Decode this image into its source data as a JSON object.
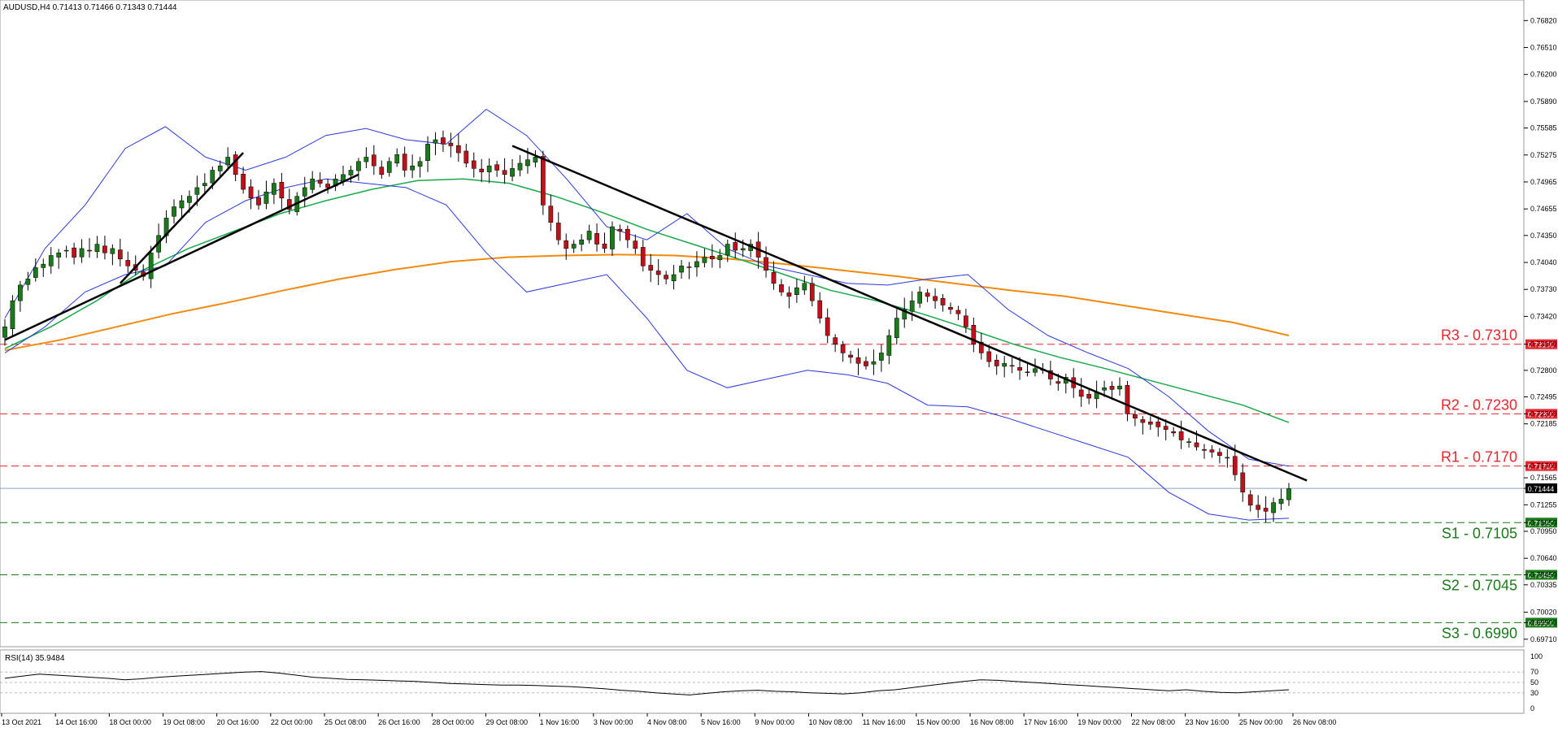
{
  "window": {
    "symbol_header": "AUDUSD,H4  0.71413 0.71466 0.71343 0.71444",
    "rsi_header": "RSI(14) 35.9484"
  },
  "colors": {
    "bull_candle": "#1a7a1a",
    "bear_candle": "#c0101a",
    "bollinger": "#2a3ad8",
    "ma_fast": "#1aa84a",
    "ma_slow": "#f08a10",
    "resistance": "#e8242c",
    "support": "#1a7a1a",
    "trendline": "#000000",
    "current_price_line": "#8aa0c8"
  },
  "chart_data": [
    {
      "type": "candlestick",
      "ylim": [
        0.6968,
        0.77
      ],
      "y_ticks": [
        "0.76820",
        "0.76510",
        "0.76200",
        "0.75890",
        "0.75585",
        "0.75275",
        "0.74965",
        "0.74655",
        "0.74350",
        "0.74040",
        "0.73730",
        "0.73420",
        "0.73100",
        "0.72800",
        "0.72495",
        "0.72300",
        "0.72185",
        "0.71700",
        "0.71565",
        "0.71444",
        "0.71255",
        "0.71050",
        "0.70950",
        "0.70640",
        "0.70450",
        "0.70335",
        "0.70020",
        "0.69900",
        "0.69710"
      ],
      "x_labels": [
        "13 Oct 2021",
        "14 Oct 16:00",
        "18 Oct 00:00",
        "19 Oct 08:00",
        "20 Oct 16:00",
        "22 Oct 00:00",
        "25 Oct 08:00",
        "26 Oct 16:00",
        "28 Oct 00:00",
        "29 Oct 08:00",
        "1 Nov 16:00",
        "3 Nov 00:00",
        "4 Nov 08:00",
        "5 Nov 16:00",
        "9 Nov 00:00",
        "10 Nov 08:00",
        "11 Nov 16:00",
        "15 Nov 00:00",
        "16 Nov 08:00",
        "17 Nov 16:00",
        "19 Nov 00:00",
        "22 Nov 08:00",
        "23 Nov 16:00",
        "25 Nov 00:00",
        "26 Nov 08:00"
      ],
      "current_price": 0.71444,
      "levels": [
        {
          "name": "R3",
          "label": "R3 - 0.7310",
          "tag": "0.73100",
          "value": 0.731,
          "kind": "resistance"
        },
        {
          "name": "R2",
          "label": "R2 - 0.7230",
          "tag": "0.72300",
          "value": 0.723,
          "kind": "resistance"
        },
        {
          "name": "R1",
          "label": "R1 - 0.7170",
          "tag": "0.71700",
          "value": 0.717,
          "kind": "resistance"
        },
        {
          "name": "S1",
          "label": "S1 - 0.7105",
          "tag": "0.71050",
          "value": 0.7105,
          "kind": "support"
        },
        {
          "name": "S2",
          "label": "S2 - 0.7045",
          "tag": "0.70450",
          "value": 0.7045,
          "kind": "support"
        },
        {
          "name": "S3",
          "label": "S3 - 0.6990",
          "tag": "0.69900",
          "value": 0.699,
          "kind": "support"
        }
      ],
      "closes": [
        0.733,
        0.736,
        0.7378,
        0.7385,
        0.7398,
        0.7402,
        0.7412,
        0.7415,
        0.7418,
        0.741,
        0.742,
        0.7418,
        0.7425,
        0.7415,
        0.742,
        0.7408,
        0.74,
        0.7395,
        0.7388,
        0.7415,
        0.7435,
        0.7455,
        0.7468,
        0.7475,
        0.748,
        0.749,
        0.7495,
        0.751,
        0.7515,
        0.7525,
        0.7505,
        0.7488,
        0.7478,
        0.747,
        0.7485,
        0.7495,
        0.7478,
        0.7465,
        0.748,
        0.749,
        0.75,
        0.7495,
        0.749,
        0.75,
        0.7505,
        0.751,
        0.752,
        0.7525,
        0.7515,
        0.7505,
        0.752,
        0.7528,
        0.751,
        0.7515,
        0.752,
        0.754,
        0.7545,
        0.754,
        0.7538,
        0.753,
        0.7518,
        0.7512,
        0.7508,
        0.7515,
        0.751,
        0.7505,
        0.7512,
        0.7518,
        0.7522,
        0.7525,
        0.747,
        0.745,
        0.743,
        0.742,
        0.7425,
        0.743,
        0.744,
        0.7425,
        0.742,
        0.7445,
        0.744,
        0.743,
        0.742,
        0.74,
        0.7395,
        0.739,
        0.7385,
        0.739,
        0.74,
        0.7398,
        0.7405,
        0.741,
        0.7408,
        0.7412,
        0.7425,
        0.7418,
        0.742,
        0.7425,
        0.741,
        0.7395,
        0.738,
        0.737,
        0.7365,
        0.7375,
        0.738,
        0.736,
        0.734,
        0.732,
        0.731,
        0.73,
        0.7295,
        0.7288,
        0.7285,
        0.729,
        0.73,
        0.732,
        0.734,
        0.735,
        0.736,
        0.737,
        0.7365,
        0.736,
        0.7355,
        0.735,
        0.7345,
        0.733,
        0.731,
        0.73,
        0.729,
        0.7285,
        0.7288,
        0.7285,
        0.728,
        0.7278,
        0.7282,
        0.728,
        0.727,
        0.7265,
        0.7272,
        0.726,
        0.725,
        0.7248,
        0.7255,
        0.726,
        0.7258,
        0.7262,
        0.723,
        0.7225,
        0.722,
        0.7218,
        0.7215,
        0.7212,
        0.7208,
        0.72,
        0.7198,
        0.7192,
        0.7188,
        0.7186,
        0.7182,
        0.718,
        0.716,
        0.714,
        0.7125,
        0.712,
        0.7118,
        0.7128,
        0.7132,
        0.7144
      ],
      "bb_upper": [
        0.734,
        0.742,
        0.747,
        0.7535,
        0.756,
        0.7525,
        0.751,
        0.7525,
        0.755,
        0.7558,
        0.7545,
        0.754,
        0.758,
        0.755,
        0.75,
        0.7445,
        0.743,
        0.746,
        0.742,
        0.74,
        0.739,
        0.738,
        0.7378,
        0.7385,
        0.739,
        0.735,
        0.732,
        0.73,
        0.7282,
        0.725,
        0.721,
        0.7178,
        0.717
      ],
      "bb_lower": [
        0.73,
        0.733,
        0.737,
        0.739,
        0.74,
        0.745,
        0.7475,
        0.749,
        0.75,
        0.7495,
        0.749,
        0.747,
        0.7415,
        0.737,
        0.738,
        0.739,
        0.734,
        0.728,
        0.726,
        0.727,
        0.728,
        0.7275,
        0.7265,
        0.724,
        0.7238,
        0.7225,
        0.721,
        0.7195,
        0.718,
        0.714,
        0.7115,
        0.7108,
        0.711
      ],
      "ma_fast": [
        0.7305,
        0.733,
        0.736,
        0.7395,
        0.742,
        0.744,
        0.746,
        0.7475,
        0.7488,
        0.7498,
        0.75,
        0.7495,
        0.748,
        0.7462,
        0.7442,
        0.7425,
        0.7408,
        0.739,
        0.7372,
        0.736,
        0.7345,
        0.7328,
        0.731,
        0.7295,
        0.7282,
        0.7268,
        0.7254,
        0.724,
        0.722
      ],
      "ma_slow": [
        0.7303,
        0.7315,
        0.733,
        0.7345,
        0.7358,
        0.7372,
        0.7385,
        0.7396,
        0.7405,
        0.741,
        0.7412,
        0.7413,
        0.7412,
        0.7408,
        0.7402,
        0.7395,
        0.7388,
        0.738,
        0.7372,
        0.7365,
        0.7355,
        0.7345,
        0.7335,
        0.732
      ],
      "trendlines": [
        {
          "from": [
            0,
            0.7315
          ],
          "to": [
            46,
            0.7505
          ]
        },
        {
          "from": [
            15,
            0.738
          ],
          "to": [
            31,
            0.753
          ]
        },
        {
          "from": [
            66,
            0.7538
          ],
          "to": [
            163,
            0.7172
          ]
        }
      ]
    },
    {
      "type": "line",
      "indicator": "RSI(14)",
      "ylim": [
        0,
        100
      ],
      "y_ticks": [
        "100",
        "70",
        "50",
        "30",
        "0"
      ],
      "current_value": 35.9484,
      "values": [
        58,
        62,
        66,
        64,
        62,
        60,
        58,
        55,
        57,
        60,
        62,
        64,
        66,
        68,
        70,
        71,
        68,
        64,
        60,
        58,
        56,
        55,
        54,
        53,
        52,
        50,
        48,
        47,
        46,
        45,
        45,
        44,
        43,
        42,
        40,
        38,
        35,
        33,
        30,
        28,
        26,
        29,
        32,
        34,
        35,
        33,
        32,
        30,
        29,
        28,
        30,
        34,
        36,
        40,
        44,
        48,
        52,
        55,
        54,
        52,
        50,
        48,
        46,
        44,
        42,
        40,
        38,
        36,
        34,
        36,
        33,
        31,
        30,
        32,
        34,
        36
      ]
    }
  ]
}
